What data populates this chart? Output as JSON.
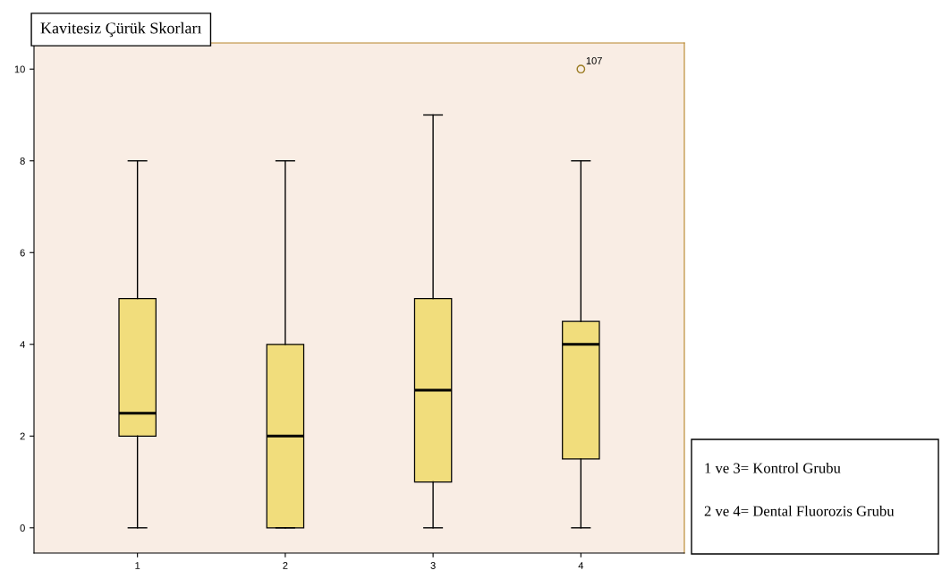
{
  "chart_data": {
    "type": "box",
    "title": "Kavitesiz Çürük Skorları",
    "categories": [
      "1",
      "2",
      "3",
      "4"
    ],
    "boxes": [
      {
        "low": 0,
        "q1": 2,
        "median": 2.5,
        "q3": 5,
        "high": 8
      },
      {
        "low": 0,
        "q1": 0,
        "median": 2,
        "q3": 4,
        "high": 8
      },
      {
        "low": 0,
        "q1": 1,
        "median": 3,
        "q3": 5,
        "high": 9
      },
      {
        "low": 0,
        "q1": 1.5,
        "median": 4,
        "q3": 4.5,
        "high": 8,
        "outliers": [
          10
        ]
      }
    ],
    "color": "#f1dd7c",
    "ylim": [
      -0.55,
      10.57
    ],
    "yticks": [
      0,
      2,
      4,
      6,
      8,
      10
    ],
    "grid": false,
    "annotations": [
      "107",
      "1 ve 3= Kontrol Grubu",
      "2 ve 4= Dental Fluorozis Grubu"
    ]
  }
}
